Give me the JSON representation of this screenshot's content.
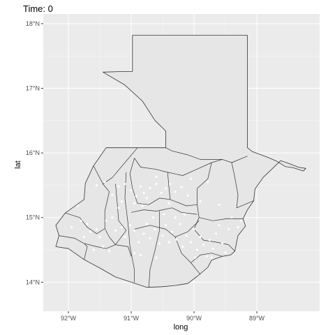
{
  "title": "Time: 0",
  "colors": {
    "panel": "#ebebeb",
    "grid_major": "#ffffff",
    "land": "#e6e6e6",
    "border": "#333333",
    "point": "#ffffff"
  },
  "chart_data": {
    "type": "scatter",
    "title": "Time: 0",
    "xlabel": "long",
    "ylabel": "lat",
    "xlim": [
      -92.4,
      -88.0
    ],
    "ylim": [
      13.55,
      18.15
    ],
    "x_ticks": [
      {
        "value": -92,
        "label": "92°W"
      },
      {
        "value": -91,
        "label": "91°W"
      },
      {
        "value": -90,
        "label": "90°W"
      },
      {
        "value": -89,
        "label": "89°W"
      }
    ],
    "y_ticks": [
      {
        "value": 14,
        "label": "14°N"
      },
      {
        "value": 15,
        "label": "15°N"
      },
      {
        "value": 16,
        "label": "16°N"
      },
      {
        "value": 17,
        "label": "17°N"
      },
      {
        "value": 18,
        "label": "18°N"
      }
    ],
    "grid": true,
    "country_outline": [
      [
        -90.98,
        17.82
      ],
      [
        -89.15,
        17.82
      ],
      [
        -89.15,
        16.08
      ],
      [
        -89.07,
        16.02
      ],
      [
        -88.93,
        15.97
      ],
      [
        -88.82,
        15.93
      ],
      [
        -88.68,
        15.87
      ],
      [
        -88.55,
        15.79
      ],
      [
        -88.42,
        15.77
      ],
      [
        -88.26,
        15.72
      ],
      [
        -88.22,
        15.76
      ],
      [
        -88.34,
        15.78
      ],
      [
        -88.5,
        15.84
      ],
      [
        -88.62,
        15.88
      ],
      [
        -88.75,
        15.76
      ],
      [
        -88.9,
        15.62
      ],
      [
        -89.03,
        15.44
      ],
      [
        -89.05,
        15.26
      ],
      [
        -89.15,
        15.12
      ],
      [
        -89.22,
        14.98
      ],
      [
        -89.18,
        14.87
      ],
      [
        -89.3,
        14.72
      ],
      [
        -89.35,
        14.48
      ],
      [
        -89.42,
        14.42
      ],
      [
        -89.55,
        14.4
      ],
      [
        -89.72,
        14.34
      ],
      [
        -89.78,
        14.23
      ],
      [
        -89.95,
        14.09
      ],
      [
        -90.1,
        13.98
      ],
      [
        -90.3,
        13.95
      ],
      [
        -90.5,
        13.93
      ],
      [
        -90.75,
        13.92
      ],
      [
        -91.0,
        14.0
      ],
      [
        -91.25,
        14.08
      ],
      [
        -91.5,
        14.22
      ],
      [
        -91.75,
        14.35
      ],
      [
        -92.0,
        14.52
      ],
      [
        -92.2,
        14.55
      ],
      [
        -92.15,
        14.72
      ],
      [
        -92.2,
        14.88
      ],
      [
        -92.05,
        15.07
      ],
      [
        -91.75,
        15.28
      ],
      [
        -91.73,
        15.53
      ],
      [
        -91.6,
        15.8
      ],
      [
        -91.4,
        16.08
      ],
      [
        -90.45,
        16.08
      ],
      [
        -90.45,
        16.34
      ],
      [
        -90.62,
        16.5
      ],
      [
        -90.82,
        16.8
      ],
      [
        -91.1,
        17.05
      ],
      [
        -91.45,
        17.25
      ],
      [
        -91.1,
        17.26
      ],
      [
        -90.98,
        17.26
      ]
    ],
    "department_borders": [
      [
        [
          -91.6,
          15.8
        ],
        [
          -91.45,
          15.52
        ],
        [
          -91.35,
          15.4
        ],
        [
          -91.42,
          15.1
        ],
        [
          -91.42,
          14.83
        ]
      ],
      [
        [
          -90.9,
          16.08
        ],
        [
          -91.1,
          15.85
        ],
        [
          -91.3,
          15.62
        ],
        [
          -91.45,
          15.52
        ]
      ],
      [
        [
          -91.25,
          15.52
        ],
        [
          -91.22,
          15.2
        ],
        [
          -91.2,
          14.95
        ],
        [
          -91.08,
          14.8
        ],
        [
          -91.25,
          14.58
        ]
      ],
      [
        [
          -91.08,
          15.7
        ],
        [
          -91.1,
          15.3
        ],
        [
          -91.05,
          14.9
        ],
        [
          -91.02,
          14.55
        ],
        [
          -90.95,
          14.2
        ],
        [
          -90.95,
          14.0
        ]
      ],
      [
        [
          -90.45,
          16.08
        ],
        [
          -90.35,
          16.03
        ],
        [
          -90.1,
          15.97
        ],
        [
          -89.9,
          15.9
        ],
        [
          -89.55,
          15.9
        ],
        [
          -89.4,
          15.85
        ],
        [
          -89.15,
          15.95
        ]
      ],
      [
        [
          -90.95,
          15.92
        ],
        [
          -90.85,
          15.78
        ],
        [
          -90.62,
          15.75
        ],
        [
          -90.42,
          15.7
        ],
        [
          -90.18,
          15.65
        ],
        [
          -89.95,
          15.75
        ],
        [
          -89.72,
          15.85
        ],
        [
          -89.55,
          15.9
        ]
      ],
      [
        [
          -90.95,
          15.92
        ],
        [
          -91.02,
          15.68
        ],
        [
          -90.98,
          15.45
        ],
        [
          -90.9,
          15.22
        ],
        [
          -90.72,
          15.2
        ],
        [
          -90.55,
          15.3
        ],
        [
          -90.38,
          15.28
        ]
      ],
      [
        [
          -90.42,
          15.7
        ],
        [
          -90.4,
          15.48
        ],
        [
          -90.38,
          15.28
        ],
        [
          -90.12,
          15.18
        ],
        [
          -89.95,
          15.2
        ]
      ],
      [
        [
          -89.72,
          15.85
        ],
        [
          -89.78,
          15.6
        ],
        [
          -89.95,
          15.45
        ],
        [
          -89.95,
          15.2
        ],
        [
          -89.92,
          15.0
        ],
        [
          -90.0,
          14.82
        ],
        [
          -89.85,
          14.65
        ]
      ],
      [
        [
          -89.4,
          15.85
        ],
        [
          -89.35,
          15.62
        ],
        [
          -89.3,
          15.35
        ],
        [
          -89.32,
          15.15
        ],
        [
          -89.05,
          15.26
        ]
      ],
      [
        [
          -91.0,
          15.08
        ],
        [
          -90.8,
          15.12
        ],
        [
          -90.6,
          15.1
        ],
        [
          -90.35,
          15.15
        ],
        [
          -90.2,
          15.08
        ],
        [
          -89.95,
          15.05
        ]
      ],
      [
        [
          -90.95,
          14.82
        ],
        [
          -90.7,
          14.88
        ],
        [
          -90.45,
          14.82
        ],
        [
          -90.3,
          14.7
        ],
        [
          -90.2,
          14.45
        ],
        [
          -90.05,
          14.3
        ],
        [
          -89.9,
          14.12
        ]
      ],
      [
        [
          -90.55,
          15.1
        ],
        [
          -90.55,
          14.8
        ],
        [
          -90.62,
          14.5
        ],
        [
          -90.7,
          14.2
        ],
        [
          -90.72,
          13.92
        ]
      ],
      [
        [
          -90.3,
          14.7
        ],
        [
          -90.1,
          14.78
        ],
        [
          -89.92,
          14.95
        ]
      ],
      [
        [
          -89.92,
          15.0
        ],
        [
          -89.7,
          14.95
        ],
        [
          -89.5,
          14.98
        ],
        [
          -89.22,
          14.98
        ]
      ],
      [
        [
          -89.85,
          14.65
        ],
        [
          -89.65,
          14.62
        ],
        [
          -89.45,
          14.58
        ],
        [
          -89.35,
          14.48
        ]
      ],
      [
        [
          -90.05,
          14.3
        ],
        [
          -89.9,
          14.42
        ],
        [
          -89.72,
          14.45
        ],
        [
          -89.55,
          14.4
        ]
      ],
      [
        [
          -92.05,
          15.07
        ],
        [
          -91.82,
          15.0
        ],
        [
          -91.7,
          14.85
        ],
        [
          -91.55,
          14.75
        ],
        [
          -91.42,
          14.83
        ]
      ],
      [
        [
          -92.15,
          14.72
        ],
        [
          -91.9,
          14.68
        ],
        [
          -91.75,
          14.6
        ],
        [
          -91.55,
          14.55
        ],
        [
          -91.4,
          14.52
        ],
        [
          -91.25,
          14.58
        ]
      ],
      [
        [
          -91.75,
          14.35
        ],
        [
          -91.7,
          14.55
        ],
        [
          -91.75,
          14.6
        ]
      ],
      [
        [
          -91.42,
          14.83
        ],
        [
          -91.35,
          14.7
        ],
        [
          -91.25,
          14.58
        ],
        [
          -91.05,
          14.55
        ],
        [
          -91.0,
          14.4
        ]
      ]
    ],
    "points": [
      [
        -91.55,
        15.5
      ],
      [
        -91.42,
        15.55
      ],
      [
        -91.2,
        15.48
      ],
      [
        -91.1,
        15.52
      ],
      [
        -91.0,
        15.42
      ],
      [
        -90.92,
        15.33
      ],
      [
        -90.85,
        15.48
      ],
      [
        -90.8,
        15.38
      ],
      [
        -90.7,
        15.46
      ],
      [
        -90.6,
        15.52
      ],
      [
        -90.52,
        15.38
      ],
      [
        -90.45,
        15.45
      ],
      [
        -90.38,
        15.52
      ],
      [
        -90.3,
        15.4
      ],
      [
        -90.2,
        15.47
      ],
      [
        -90.1,
        15.34
      ],
      [
        -90.05,
        15.6
      ],
      [
        -90.6,
        15.63
      ],
      [
        -90.75,
        15.3
      ],
      [
        -90.95,
        15.22
      ],
      [
        -91.3,
        15.35
      ],
      [
        -91.15,
        15.25
      ],
      [
        -91.85,
        15.18
      ],
      [
        -91.8,
        14.95
      ],
      [
        -91.7,
        14.9
      ],
      [
        -91.65,
        14.78
      ],
      [
        -91.55,
        14.82
      ],
      [
        -91.5,
        14.7
      ],
      [
        -91.4,
        14.95
      ],
      [
        -91.3,
        15.0
      ],
      [
        -91.25,
        14.8
      ],
      [
        -91.15,
        14.85
      ],
      [
        -91.1,
        14.7
      ],
      [
        -91.02,
        14.88
      ],
      [
        -90.95,
        14.8
      ],
      [
        -90.88,
        14.62
      ],
      [
        -90.8,
        14.75
      ],
      [
        -90.75,
        14.9
      ],
      [
        -90.7,
        14.68
      ],
      [
        -90.62,
        14.82
      ],
      [
        -90.55,
        14.6
      ],
      [
        -90.5,
        14.72
      ],
      [
        -90.45,
        14.88
      ],
      [
        -90.4,
        14.62
      ],
      [
        -90.35,
        14.78
      ],
      [
        -90.28,
        14.66
      ],
      [
        -90.22,
        14.9
      ],
      [
        -90.18,
        14.55
      ],
      [
        -90.12,
        14.72
      ],
      [
        -90.05,
        14.62
      ],
      [
        -90.0,
        14.82
      ],
      [
        -89.95,
        14.5
      ],
      [
        -89.9,
        14.7
      ],
      [
        -89.85,
        14.58
      ],
      [
        -89.8,
        14.4
      ],
      [
        -89.75,
        14.65
      ],
      [
        -89.7,
        14.52
      ],
      [
        -89.65,
        14.75
      ],
      [
        -89.6,
        14.88
      ],
      [
        -89.55,
        14.6
      ],
      [
        -89.5,
        14.46
      ],
      [
        -89.45,
        14.82
      ],
      [
        -89.4,
        15.0
      ],
      [
        -89.3,
        14.85
      ],
      [
        -89.25,
        14.95
      ],
      [
        -90.15,
        15.05
      ],
      [
        -90.3,
        15.0
      ],
      [
        -90.48,
        15.05
      ],
      [
        -90.65,
        15.0
      ],
      [
        -91.6,
        14.5
      ],
      [
        -91.45,
        14.55
      ],
      [
        -91.35,
        14.48
      ],
      [
        -90.95,
        14.45
      ],
      [
        -90.85,
        14.42
      ],
      [
        -90.6,
        14.38
      ],
      [
        -89.98,
        14.38
      ],
      [
        -89.72,
        14.38
      ],
      [
        -91.75,
        14.7
      ],
      [
        -91.95,
        14.85
      ],
      [
        -91.2,
        15.15
      ],
      [
        -90.82,
        15.18
      ],
      [
        -90.4,
        15.22
      ],
      [
        -89.6,
        15.2
      ],
      [
        -89.9,
        15.25
      ],
      [
        -89.78,
        15.55
      ]
    ]
  }
}
